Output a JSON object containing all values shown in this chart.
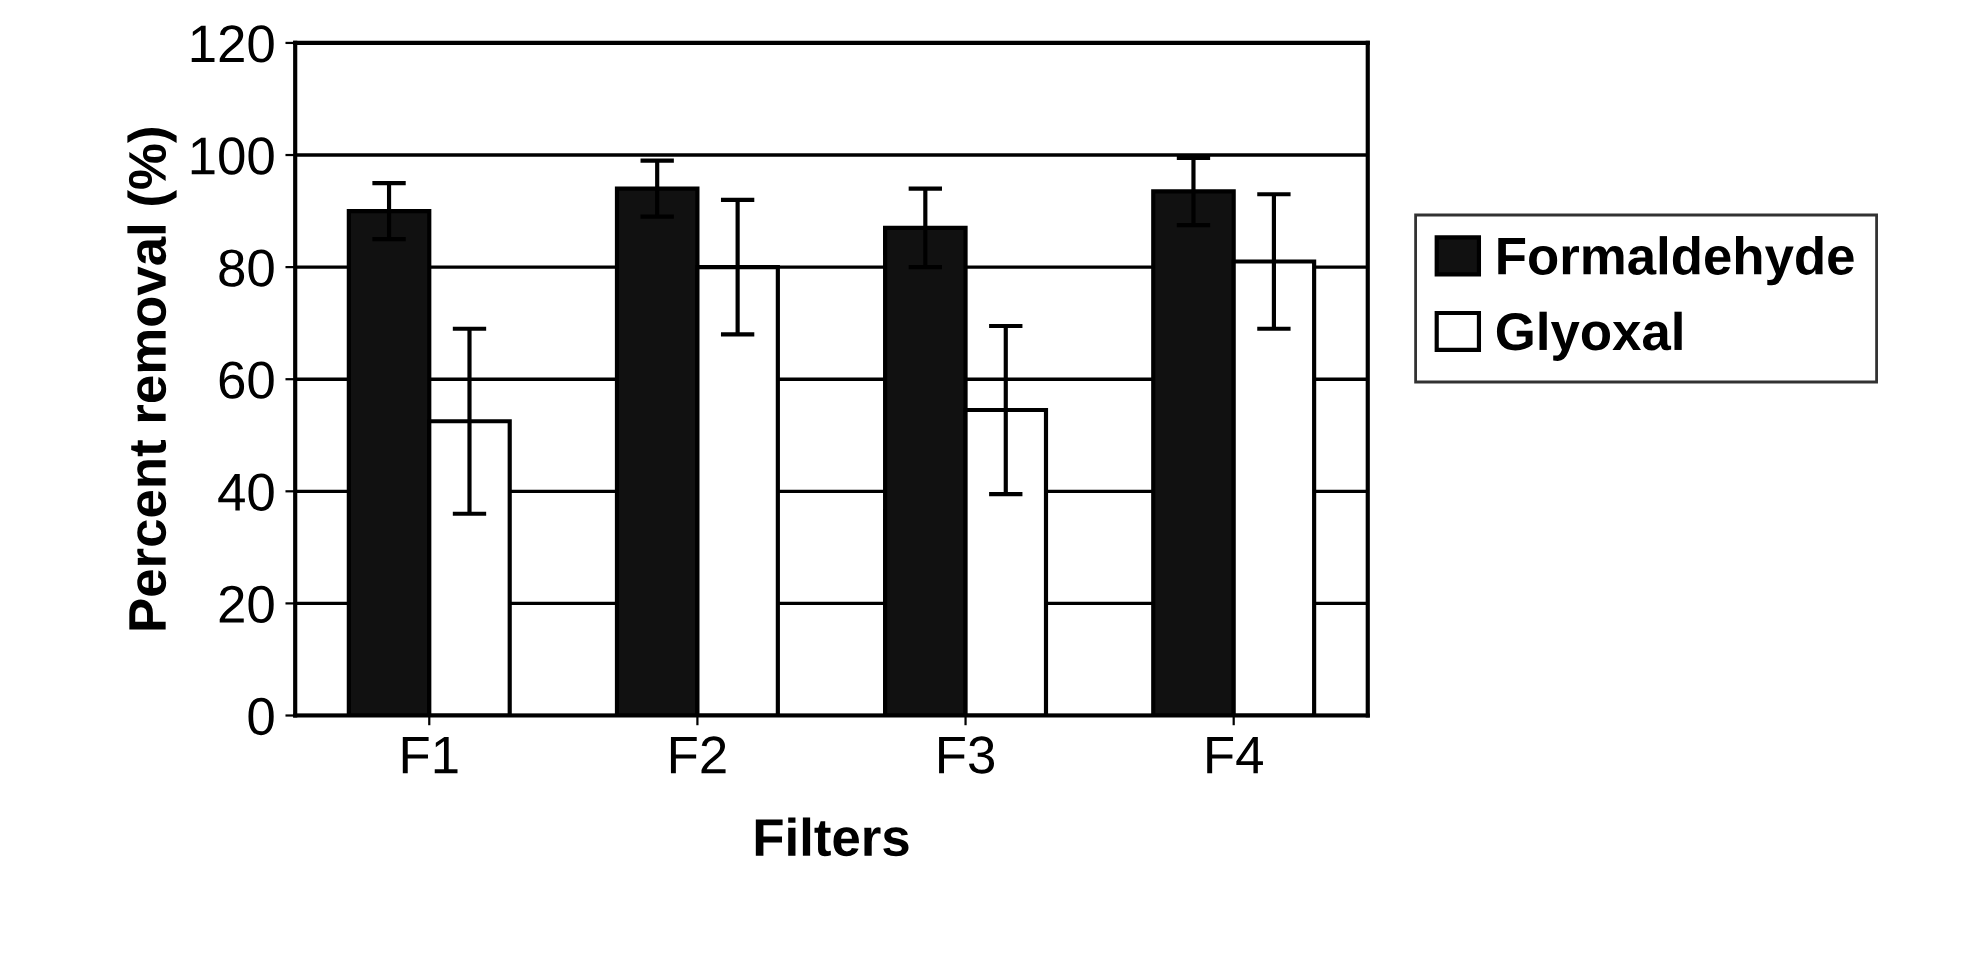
{
  "chart_data": {
    "type": "bar",
    "xlabel": "Filters",
    "ylabel": "Percent removal (%)",
    "categories": [
      "F1",
      "F2",
      "F3",
      "F4"
    ],
    "series": [
      {
        "name": "Formaldehyde",
        "color": "#111111",
        "values": [
          90,
          94,
          87,
          93.5
        ],
        "errors": [
          5,
          5,
          7,
          6
        ]
      },
      {
        "name": "Glyoxal",
        "color": "#ffffff",
        "values": [
          52.5,
          80,
          54.5,
          81
        ],
        "errors": [
          16.5,
          12,
          15,
          12
        ]
      }
    ],
    "ylim": [
      0,
      120
    ],
    "yticks": [
      0,
      20,
      40,
      60,
      80,
      100,
      120
    ],
    "grid": "y",
    "legend": "right"
  }
}
